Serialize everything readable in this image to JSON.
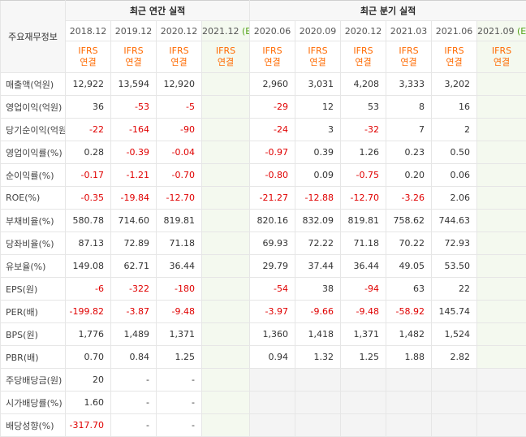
{
  "header": {
    "row_label": "주요재무정보",
    "annual_title": "최근 연간 실적",
    "quarter_title": "최근 분기 실적",
    "annual_periods": [
      "2018.12",
      "2019.12",
      "2020.12",
      "2021.12"
    ],
    "annual_est_marker": "(E)",
    "quarter_periods": [
      "2020.06",
      "2020.09",
      "2020.12",
      "2021.03",
      "2021.06",
      "2021.09"
    ],
    "quarter_est_marker": "(E)",
    "ifrs_top": "IFRS",
    "ifrs_bottom": "연결"
  },
  "rows": [
    {
      "label": "매출액(억원)",
      "annual": [
        "12,922",
        "13,594",
        "12,920",
        ""
      ],
      "quarter": [
        "2,960",
        "3,031",
        "4,208",
        "3,333",
        "3,202",
        ""
      ]
    },
    {
      "label": "영업이익(억원)",
      "annual": [
        "36",
        "-53",
        "-5",
        ""
      ],
      "quarter": [
        "-29",
        "12",
        "53",
        "8",
        "16",
        ""
      ]
    },
    {
      "label": "당기순이익(억원)",
      "annual": [
        "-22",
        "-164",
        "-90",
        ""
      ],
      "quarter": [
        "-24",
        "3",
        "-32",
        "7",
        "2",
        ""
      ]
    },
    {
      "label": "영업이익률(%)",
      "annual": [
        "0.28",
        "-0.39",
        "-0.04",
        ""
      ],
      "quarter": [
        "-0.97",
        "0.39",
        "1.26",
        "0.23",
        "0.50",
        ""
      ]
    },
    {
      "label": "순이익률(%)",
      "annual": [
        "-0.17",
        "-1.21",
        "-0.70",
        ""
      ],
      "quarter": [
        "-0.80",
        "0.09",
        "-0.75",
        "0.20",
        "0.06",
        ""
      ]
    },
    {
      "label": "ROE(%)",
      "annual": [
        "-0.35",
        "-19.84",
        "-12.70",
        ""
      ],
      "quarter": [
        "-21.27",
        "-12.88",
        "-12.70",
        "-3.26",
        "2.06",
        ""
      ]
    },
    {
      "label": "부채비율(%)",
      "annual": [
        "580.78",
        "714.60",
        "819.81",
        ""
      ],
      "quarter": [
        "820.16",
        "832.09",
        "819.81",
        "758.62",
        "744.63",
        ""
      ]
    },
    {
      "label": "당좌비율(%)",
      "annual": [
        "87.13",
        "72.89",
        "71.18",
        ""
      ],
      "quarter": [
        "69.93",
        "72.22",
        "71.18",
        "70.22",
        "72.93",
        ""
      ]
    },
    {
      "label": "유보율(%)",
      "annual": [
        "149.08",
        "62.71",
        "36.44",
        ""
      ],
      "quarter": [
        "29.79",
        "37.44",
        "36.44",
        "49.05",
        "53.50",
        ""
      ]
    },
    {
      "label": "EPS(원)",
      "annual": [
        "-6",
        "-322",
        "-180",
        ""
      ],
      "quarter": [
        "-54",
        "38",
        "-94",
        "63",
        "22",
        ""
      ]
    },
    {
      "label": "PER(배)",
      "annual": [
        "-199.82",
        "-3.87",
        "-9.48",
        ""
      ],
      "quarter": [
        "-3.97",
        "-9.66",
        "-9.48",
        "-58.92",
        "145.74",
        ""
      ]
    },
    {
      "label": "BPS(원)",
      "annual": [
        "1,776",
        "1,489",
        "1,371",
        ""
      ],
      "quarter": [
        "1,360",
        "1,418",
        "1,371",
        "1,482",
        "1,524",
        ""
      ]
    },
    {
      "label": "PBR(배)",
      "annual": [
        "0.70",
        "0.84",
        "1.25",
        ""
      ],
      "quarter": [
        "0.94",
        "1.32",
        "1.25",
        "1.88",
        "2.82",
        ""
      ]
    },
    {
      "label": "주당배당금(원)",
      "annual": [
        "20",
        "-",
        "-",
        ""
      ],
      "quarter": [
        "",
        "",
        "",
        "",
        "",
        ""
      ]
    },
    {
      "label": "시가배당률(%)",
      "annual": [
        "1.60",
        "-",
        "-",
        ""
      ],
      "quarter": [
        "",
        "",
        "",
        "",
        "",
        ""
      ]
    },
    {
      "label": "배당성향(%)",
      "annual": [
        "-317.70",
        "-",
        "-",
        ""
      ],
      "quarter": [
        "",
        "",
        "",
        "",
        "",
        ""
      ]
    }
  ],
  "colors": {
    "negative": "#e00000",
    "ifrs": "#ff6a00",
    "estimate_marker": "#53a318",
    "estimate_bg": "#f4f9ef"
  }
}
